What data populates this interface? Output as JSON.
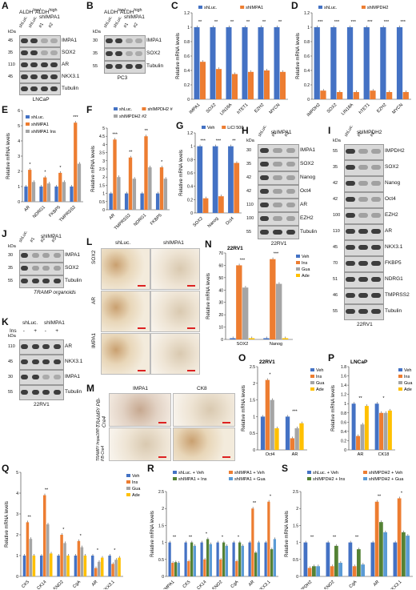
{
  "panel_letters": [
    "A",
    "B",
    "C",
    "D",
    "E",
    "F",
    "G",
    "H",
    "I",
    "J",
    "K",
    "L",
    "M",
    "N",
    "O",
    "P",
    "Q",
    "R",
    "S"
  ],
  "colors": {
    "blue": "#4472c4",
    "orange": "#ed7d31",
    "gray": "#a5a5a5",
    "yellow": "#ffc000",
    "green": "#70ad47",
    "lightblue": "#5b9bd5",
    "darkgreen": "#548235"
  },
  "blots": {
    "A": {
      "headers": [
        "ALDH<sup>low/-</sup>",
        "ALDH<sup>high</sup>"
      ],
      "group": "shIMPA1",
      "lanes": [
        "shLuc.",
        "shLuc.",
        "#1",
        "#2"
      ],
      "rows": [
        {
          "kda": "45",
          "name": "IMPA1"
        },
        {
          "kda": "35",
          "name": "SOX2"
        },
        {
          "kda": "110",
          "name": "AR"
        },
        {
          "kda": "45",
          "name": "NKX3.1"
        },
        {
          "kda": "",
          "name": "Tubulin"
        }
      ],
      "cell": "LNCaP"
    },
    "B": {
      "headers": [
        "ALDH<sup>low/-</sup>",
        "ALDH<sup>high</sup>"
      ],
      "group": "shIMPA1",
      "lanes": [
        "shLuc.",
        "shLuc.",
        "#1",
        "#2"
      ],
      "rows": [
        {
          "kda": "30",
          "name": "IMPA1"
        },
        {
          "kda": "35",
          "name": "SOX2"
        },
        {
          "kda": "55",
          "name": "Tubulin"
        }
      ],
      "cell": "PC3"
    },
    "H": {
      "group": "shIMPA1",
      "lanes": [
        "shLuc.",
        "#1",
        "#2"
      ],
      "rows": [
        {
          "kda": "30",
          "name": "IMPA1"
        },
        {
          "kda": "35",
          "name": "SOX2"
        },
        {
          "kda": "42",
          "name": "Nanog"
        },
        {
          "kda": "42",
          "name": "Oct4"
        },
        {
          "kda": "110",
          "name": "AR"
        },
        {
          "kda": "100",
          "name": "EZH2"
        },
        {
          "kda": "55",
          "name": "Tubulin"
        }
      ],
      "cell": "22RV1"
    },
    "I": {
      "group": "shIMPDH2",
      "lanes": [
        "shLuc.",
        "#1",
        "#2"
      ],
      "rows": [
        {
          "kda": "55",
          "name": "IMPDH2"
        },
        {
          "kda": "35",
          "name": "SOX2"
        },
        {
          "kda": "42",
          "name": "Nanog"
        },
        {
          "kda": "42",
          "name": "Oct4"
        },
        {
          "kda": "100",
          "name": "EZH2"
        },
        {
          "kda": "110",
          "name": "AR"
        },
        {
          "kda": "45",
          "name": "NKX3.1"
        },
        {
          "kda": "70",
          "name": "FKBP5"
        },
        {
          "kda": "51",
          "name": "NDRG1"
        },
        {
          "kda": "46",
          "name": "TMPRSS2"
        },
        {
          "kda": "55",
          "name": "Tubulin"
        }
      ],
      "cell": "22RV1"
    },
    "J": {
      "group": "shIMPA1",
      "lanes": [
        "shLuc.",
        "#1",
        "#2",
        "#3"
      ],
      "rows": [
        {
          "kda": "30",
          "name": "IMPA1"
        },
        {
          "kda": "35",
          "name": "SOX2"
        },
        {
          "kda": "55",
          "name": "Tubulin"
        }
      ],
      "cell": "TRAMP organoids"
    },
    "K": {
      "top": [
        "shLuc.",
        "shIMPA1"
      ],
      "ins_label": "Ins",
      "ins_signs": [
        "-",
        "+",
        "-",
        "+"
      ],
      "rows": [
        {
          "kda": "110",
          "name": "AR"
        },
        {
          "kda": "45",
          "name": "NKX3.1"
        },
        {
          "kda": "30",
          "name": "IMPA1"
        },
        {
          "kda": "55",
          "name": "Tubulin"
        }
      ],
      "cell": "22RV1"
    }
  },
  "L": {
    "cols": [
      "shLuc.",
      "shIMPA1"
    ],
    "rows": [
      "SOX2",
      "AR",
      "IMPA1"
    ]
  },
  "M": {
    "cols": [
      "IMPA1",
      "CK8"
    ],
    "rows": [
      "TRAMP/ PB-Cre4",
      "TRAMP/ Impa1fl/fl / PB-Cre4"
    ]
  },
  "chart_data": [
    {
      "panel": "C",
      "type": "bar",
      "ylabel": "Relative mRNA levels",
      "ylim": [
        0,
        1.2
      ],
      "yticks": [
        "0",
        "0.2",
        "0.4",
        "0.6",
        "0.8",
        "1",
        "1.2"
      ],
      "categories": [
        "IMPA1",
        "SOX2",
        "LIN18A",
        "hTET1",
        "EZH2",
        "MYCN"
      ],
      "series": [
        {
          "name": "shLuc.",
          "values": [
            1,
            1,
            1,
            1,
            1,
            1
          ]
        },
        {
          "name": "shIMPA1",
          "values": [
            0.52,
            0.42,
            0.35,
            0.38,
            0.4,
            0.38
          ]
        }
      ],
      "sig": [
        "**",
        "**",
        "**",
        "**",
        "**",
        "**"
      ]
    },
    {
      "panel": "D",
      "type": "bar",
      "ylabel": "Relative mRNA levels",
      "ylim": [
        0,
        1.2
      ],
      "yticks": [
        "0",
        "0.2",
        "0.4",
        "0.6",
        "0.8",
        "1",
        "1.2"
      ],
      "categories": [
        "IMPDH2",
        "SOX2",
        "LIN18A",
        "hTET1",
        "EZH2",
        "MYCN"
      ],
      "series": [
        {
          "name": "shLuc.",
          "values": [
            1,
            1,
            1,
            1,
            1,
            1
          ]
        },
        {
          "name": "shIMPDH2",
          "values": [
            0.12,
            0.1,
            0.1,
            0.12,
            0.1,
            0.1
          ]
        }
      ],
      "sig": [
        "***",
        "***",
        "***",
        "***",
        "***",
        "***"
      ]
    },
    {
      "panel": "E",
      "type": "bar",
      "ylabel": "Relative mRNA levels",
      "ylim": [
        0,
        6
      ],
      "yticks": [
        "0",
        "1",
        "2",
        "3",
        "4",
        "5",
        "6"
      ],
      "categories": [
        "AR",
        "NDRG1",
        "FKBP5",
        "TMPRSS2"
      ],
      "series": [
        {
          "name": "shLuc.",
          "values": [
            1,
            1,
            1,
            1
          ]
        },
        {
          "name": "shIMPA1",
          "values": [
            2.1,
            1.6,
            1.9,
            5.2
          ]
        },
        {
          "name": "shIMPA1 Ins",
          "values": [
            1.3,
            1.2,
            1.3,
            2.5
          ]
        }
      ],
      "sig": [
        "*",
        "*",
        "*",
        "***"
      ]
    },
    {
      "panel": "F",
      "type": "bar",
      "ylabel": "Relative mRNA levels",
      "ylim": [
        0,
        5
      ],
      "yticks": [
        "0",
        "0.5",
        "1",
        "1.5",
        "2",
        "2.5",
        "3",
        "3.5",
        "4",
        "4.5",
        "5"
      ],
      "categories": [
        "AR",
        "TMPRSS2",
        "NDRG1",
        "FKBP5"
      ],
      "series": [
        {
          "name": "shLuc.",
          "values": [
            1,
            1,
            1,
            1
          ]
        },
        {
          "name": "shIMPDH2 #1",
          "values": [
            4.3,
            3.2,
            4.5,
            2.6
          ]
        },
        {
          "name": "shIMPDH2 #2",
          "values": [
            2.0,
            1.9,
            2.6,
            1.9
          ]
        }
      ],
      "sig": [
        "***",
        "**",
        "**",
        "*"
      ]
    },
    {
      "panel": "G",
      "type": "bar",
      "ylabel": "Relative mRNA levels",
      "ylim": [
        0,
        1.2
      ],
      "yticks": [
        "0",
        "0.2",
        "0.4",
        "0.6",
        "0.8",
        "1",
        "1.2"
      ],
      "categories": [
        "SOX2",
        "Nanog",
        "Oct4"
      ],
      "series": [
        {
          "name": "Veh",
          "values": [
            1,
            1,
            1
          ]
        },
        {
          "name": "LiCl 500 μM",
          "values": [
            0.22,
            0.25,
            0.75
          ]
        }
      ],
      "sig": [
        "***",
        "***",
        "**"
      ]
    },
    {
      "panel": "N",
      "type": "bar",
      "subtitle": "22RV1",
      "ylabel": "Relative mRNA levels",
      "ylim": [
        0,
        70
      ],
      "yticks": [
        "0",
        "10",
        "20",
        "30",
        "40",
        "50",
        "60",
        "70"
      ],
      "categories": [
        "SOX2",
        "Nanog"
      ],
      "series": [
        {
          "name": "Veh",
          "values": [
            1,
            1
          ]
        },
        {
          "name": "Ins",
          "values": [
            60,
            65
          ]
        },
        {
          "name": "Gua",
          "values": [
            42,
            45
          ]
        },
        {
          "name": "Ade",
          "values": [
            1,
            1
          ]
        }
      ],
      "sig": [
        "***",
        "***"
      ]
    },
    {
      "panel": "O",
      "type": "bar",
      "subtitle": "22RV1",
      "ylabel": "Relative mRNA levels",
      "ylim": [
        0,
        2.5
      ],
      "yticks": [
        "0",
        "0.5",
        "1",
        "1.5",
        "2",
        "2.5"
      ],
      "categories": [
        "Oct4",
        "AR"
      ],
      "series": [
        {
          "name": "Veh",
          "values": [
            1,
            1
          ]
        },
        {
          "name": "Ins",
          "values": [
            2.1,
            0.35
          ]
        },
        {
          "name": "Gua",
          "values": [
            1.5,
            0.65
          ]
        },
        {
          "name": "Ade",
          "values": [
            0.65,
            0.8
          ]
        }
      ],
      "sig": [
        "*",
        "***"
      ]
    },
    {
      "panel": "P",
      "type": "bar",
      "subtitle": "LNCaP",
      "ylabel": "Relative mRNA levels",
      "ylim": [
        0,
        1.8
      ],
      "yticks": [
        "0",
        "0.2",
        "0.4",
        "0.6",
        "0.8",
        "1",
        "1.2",
        "1.4",
        "1.6",
        "1.8"
      ],
      "categories": [
        "AR",
        "CK18"
      ],
      "series": [
        {
          "name": "Veh",
          "values": [
            1,
            1
          ]
        },
        {
          "name": "Ins",
          "values": [
            0.3,
            0.8
          ]
        },
        {
          "name": "Gua",
          "values": [
            0.55,
            0.8
          ]
        },
        {
          "name": "Ade",
          "values": [
            0.95,
            0.85
          ]
        }
      ],
      "sig": [
        "**",
        "*"
      ]
    },
    {
      "panel": "Q",
      "type": "bar",
      "ylabel": "Relative mRNA levels",
      "ylim": [
        0,
        5
      ],
      "yticks": [
        "0",
        "1",
        "2",
        "3",
        "4",
        "5"
      ],
      "categories": [
        "CK5",
        "CK14",
        "ENO2",
        "CgA",
        "AR",
        "NKX3.1"
      ],
      "series": [
        {
          "name": "Veh",
          "values": [
            1,
            1,
            1,
            1,
            1,
            1
          ]
        },
        {
          "name": "Ins",
          "values": [
            2.6,
            3.9,
            2.0,
            1.7,
            0.4,
            0.6
          ]
        },
        {
          "name": "Gua",
          "values": [
            1.8,
            2.5,
            1.6,
            1.4,
            0.7,
            0.8
          ]
        },
        {
          "name": "Ade",
          "values": [
            1.0,
            1.1,
            1.0,
            1.0,
            0.9,
            0.9
          ]
        }
      ],
      "sig": [
        "**",
        "**",
        "*",
        "*",
        "*",
        "*"
      ]
    },
    {
      "panel": "R",
      "type": "bar",
      "ylabel": "Relative mRNA levels",
      "ylim": [
        0,
        2.5
      ],
      "yticks": [
        "0",
        "0.5",
        "1",
        "1.5",
        "2",
        "2.5"
      ],
      "categories": [
        "IMPA1",
        "CK5",
        "CK14",
        "ENO2",
        "CgA",
        "AR",
        "NKX3.1"
      ],
      "series": [
        {
          "name": "shLuc. + Veh",
          "values": [
            1,
            1,
            1,
            1,
            1,
            1,
            1
          ]
        },
        {
          "name": "shIMPA1 + Veh",
          "values": [
            0.4,
            0.45,
            0.5,
            0.5,
            0.45,
            2.0,
            2.2
          ]
        },
        {
          "name": "shIMPA1 + Ins",
          "values": [
            0.42,
            1.0,
            1.1,
            1.0,
            1.0,
            0.7,
            0.8
          ]
        },
        {
          "name": "shIMPA1 + Gua",
          "values": [
            0.4,
            0.9,
            0.95,
            0.9,
            0.9,
            1.0,
            1.1
          ]
        }
      ],
      "sig": [
        "**",
        "**",
        "*",
        "*",
        "*",
        "**",
        "*"
      ]
    },
    {
      "panel": "S",
      "type": "bar",
      "ylabel": "Relative mRNA levels",
      "ylim": [
        0,
        2.5
      ],
      "yticks": [
        "0",
        "0.5",
        "1",
        "1.5",
        "2",
        "2.5"
      ],
      "categories": [
        "IMPDH2",
        "ENO2",
        "CgA",
        "AR",
        "NKX3.1"
      ],
      "series": [
        {
          "name": "shLuc. + Veh",
          "values": [
            1,
            1,
            1,
            1,
            1
          ]
        },
        {
          "name": "shIMPDH2 + Veh",
          "values": [
            0.25,
            0.3,
            0.3,
            2.2,
            2.3
          ]
        },
        {
          "name": "shIMPDH2 + Ins",
          "values": [
            0.3,
            0.9,
            0.8,
            1.6,
            1.3
          ]
        },
        {
          "name": "shIMPDH2 + Gua",
          "values": [
            0.3,
            0.4,
            0.35,
            1.3,
            1.2
          ]
        }
      ],
      "sig": [
        "**",
        "**",
        "**",
        "**",
        "*"
      ]
    }
  ]
}
